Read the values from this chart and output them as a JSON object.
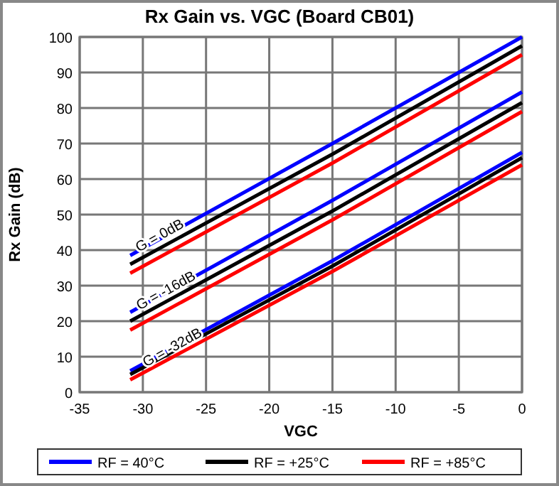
{
  "chart_data": {
    "type": "line",
    "title": "Rx Gain vs. VGC (Board CB01)",
    "xlabel": "VGC",
    "ylabel": "Rx Gain (dB)",
    "xlim": [
      -35,
      0
    ],
    "xticks": [
      -35,
      -30,
      -25,
      -20,
      -15,
      -10,
      -5,
      0
    ],
    "ylim": [
      0,
      100
    ],
    "yticks": [
      0,
      10,
      20,
      30,
      40,
      50,
      60,
      70,
      80,
      90,
      100
    ],
    "grid": true,
    "legend": "bottom",
    "series": [
      {
        "name": "RF = 40°C",
        "color": "#0000ff",
        "x": [
          -31,
          -15,
          0
        ],
        "values": [
          38.5,
          70,
          100
        ]
      },
      {
        "name": "RF = +25°C",
        "color": "#000000",
        "x": [
          -31,
          -15,
          0
        ],
        "values": [
          36,
          67,
          97.5
        ]
      },
      {
        "name": "RF = +85°C",
        "color": "#ff0000",
        "x": [
          -31,
          -15,
          0
        ],
        "values": [
          33.5,
          64.5,
          95
        ]
      },
      {
        "color": "#0000ff",
        "x": [
          -31,
          -15,
          0
        ],
        "values": [
          22.5,
          54,
          84.5
        ]
      },
      {
        "color": "#000000",
        "x": [
          -31,
          -15,
          0
        ],
        "values": [
          20,
          51,
          81.5
        ]
      },
      {
        "color": "#ff0000",
        "x": [
          -31,
          -15,
          0
        ],
        "values": [
          17.5,
          48.5,
          79
        ]
      },
      {
        "color": "#0000ff",
        "x": [
          -31,
          -15,
          0
        ],
        "values": [
          6,
          37,
          67.5
        ]
      },
      {
        "color": "#000000",
        "x": [
          -31,
          -15,
          0
        ],
        "values": [
          5,
          35.5,
          66
        ]
      },
      {
        "color": "#ff0000",
        "x": [
          -31,
          -15,
          0
        ],
        "values": [
          3.5,
          34,
          64
        ]
      }
    ],
    "annotations": [
      {
        "text": "G = 0dB",
        "x": -28.5,
        "y": 43
      },
      {
        "text": "G = -16dB",
        "x": -28,
        "y": 27.5
      },
      {
        "text": "G = -32dB",
        "x": -27.5,
        "y": 11.5
      }
    ]
  }
}
